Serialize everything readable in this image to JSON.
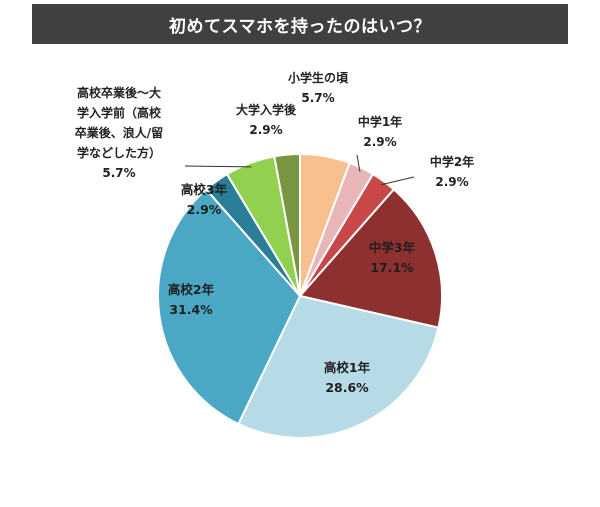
{
  "header": {
    "title": "初めてスマホを持ったのはいつ？"
  },
  "colors": {
    "title_bg": "#404040",
    "slice_border": "#ffffff"
  },
  "chart_data": {
    "type": "pie",
    "title": "初めてスマホを持ったのはいつ？",
    "start": "12 o'clock, clockwise",
    "slices": [
      {
        "label": "小学生の頃",
        "value": 5.7,
        "value_label": "5.7%",
        "color": "#f8c08c"
      },
      {
        "label": "中学1年",
        "value": 2.9,
        "value_label": "2.9%",
        "color": "#e8b6b8"
      },
      {
        "label": "中学2年",
        "value": 2.9,
        "value_label": "2.9%",
        "color": "#c8484a"
      },
      {
        "label": "中学3年",
        "value": 17.1,
        "value_label": "17.1%",
        "color": "#8e3030"
      },
      {
        "label": "高校1年",
        "value": 28.6,
        "value_label": "28.6%",
        "color": "#b6dbe6"
      },
      {
        "label": "高校2年",
        "value": 31.4,
        "value_label": "31.4%",
        "color": "#4aa8c4"
      },
      {
        "label": "高校3年",
        "value": 2.9,
        "value_label": "2.9%",
        "color": "#2a7f96"
      },
      {
        "label_lines": [
          "高校卒業後～大",
          "学入学前（高校",
          "卒業後、浪人/留",
          "学などした方）"
        ],
        "value": 5.7,
        "value_label": "5.7%",
        "color": "#92d050"
      },
      {
        "label": "大学入学後",
        "value": 2.9,
        "value_label": "2.9%",
        "color": "#7a9640"
      }
    ]
  }
}
